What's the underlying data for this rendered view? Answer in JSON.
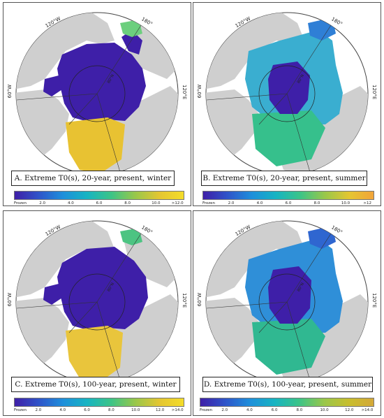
{
  "colors": {
    "ocean": "#ffffff",
    "land": "#cfcfcf",
    "frozen": "#3e1fa8",
    "circle": "#333333"
  },
  "map_labels": {
    "lon_120w": "120°W",
    "lon_180": "180°",
    "lon_60w": "60°W",
    "lon_120e": "120°E",
    "lat_80n": "80°N"
  },
  "panels": [
    {
      "caption": "A. Extreme T0(s), 20-year, present, winter",
      "colorbar": {
        "gradient": [
          "#3f1fa7",
          "#2f54c9",
          "#1e8fdb",
          "#17b4c2",
          "#3cc487",
          "#99c74a",
          "#e4c632",
          "#f4dc2a"
        ],
        "ticks": [
          "Frozen",
          "2.0",
          "4.0",
          "6.0",
          "8.0",
          "10.0",
          ">12.0"
        ]
      }
    },
    {
      "caption": "B. Extreme T0(s), 20-year, present, summer",
      "colorbar": {
        "gradient": [
          "#3f1fa7",
          "#2f54c9",
          "#1e8fdb",
          "#17b4c2",
          "#3cc487",
          "#99c74a",
          "#e4c632",
          "#f2a43a"
        ],
        "ticks": [
          "Frozen",
          "2.0",
          "4.0",
          "6.0",
          "8.0",
          "10.0",
          ">12"
        ]
      }
    },
    {
      "caption": "C. Extreme T0(s), 100-year, present, winter",
      "colorbar": {
        "gradient": [
          "#3f1fa7",
          "#2f54c9",
          "#1e8fdb",
          "#17b4c2",
          "#3cc487",
          "#99c74a",
          "#e4c632",
          "#f4dc2a"
        ],
        "ticks": [
          "Frozen",
          "2.0",
          "4.0",
          "6.0",
          "8.0",
          "10.0",
          "12.0",
          ">14.0"
        ]
      }
    },
    {
      "caption": "D. Extreme T0(s), 100-year, present, summer",
      "colorbar": {
        "gradient": [
          "#3f1fa7",
          "#2f54c9",
          "#1e8fdb",
          "#17b4c2",
          "#3cc487",
          "#99c74a",
          "#c8be2e",
          "#d4a838"
        ],
        "ticks": [
          "Frozen",
          "2.0",
          "4.0",
          "6.0",
          "8.0",
          "10.0",
          "12.0",
          ">14.0"
        ]
      }
    }
  ]
}
